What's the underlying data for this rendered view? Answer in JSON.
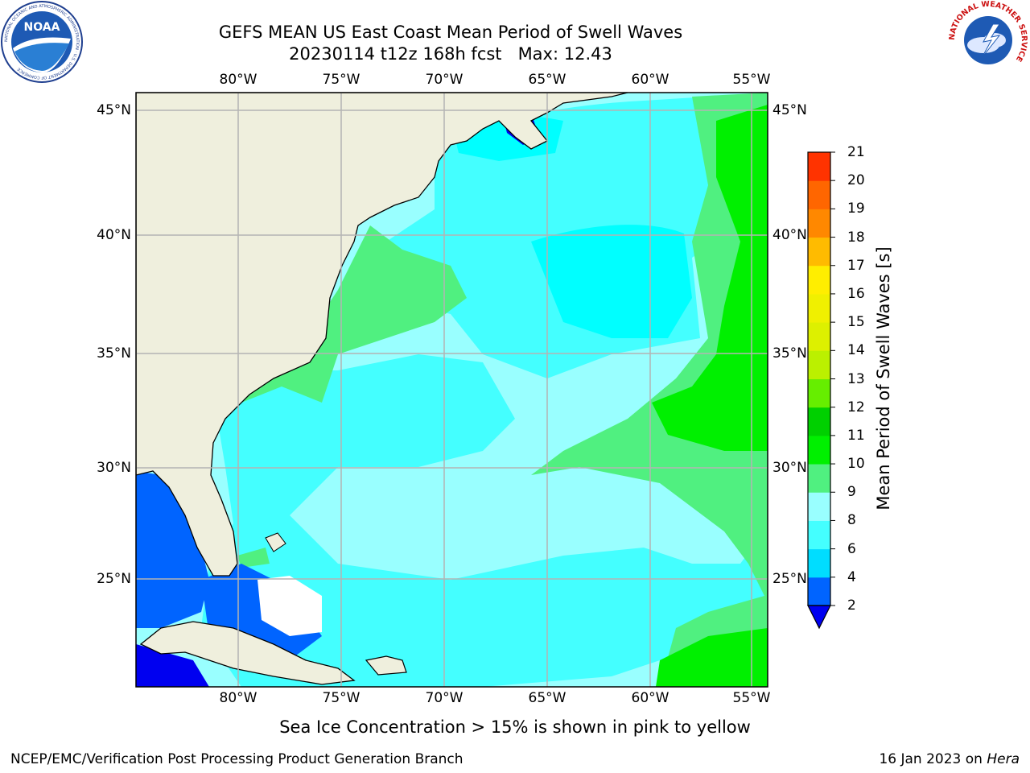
{
  "header": {
    "title_line1": "GEFS MEAN US East Coast Mean Period of Swell Waves",
    "title_line2": "20230114 t12z 168h fcst   Max: 12.43"
  },
  "logos": {
    "left": {
      "icon": "noaa-logo",
      "text": "NOAA",
      "ring": "NATIONAL OCEANIC AND ATMOSPHERIC ADMINISTRATION · U.S. DEPARTMENT OF COMMERCE"
    },
    "right": {
      "icon": "nws-logo",
      "ring": "NATIONAL WEATHER SERVICE"
    }
  },
  "map": {
    "lon_ticks": [
      "80°W",
      "75°W",
      "70°W",
      "65°W",
      "60°W",
      "55°W"
    ],
    "lat_ticks": [
      "45°N",
      "40°N",
      "35°N",
      "30°N",
      "25°N"
    ],
    "lon_range": [
      -85,
      -54.4
    ],
    "lat_range": [
      20.4,
      45.8
    ],
    "colors": {
      "land": "#efefdd",
      "grid": "#b4b4b4",
      "coast": "#000000",
      "no_data": "#ffffff"
    }
  },
  "colorbar": {
    "title": "Mean Period of Swell Waves [s]",
    "levels": [
      "2",
      "4",
      "6",
      "8",
      "9",
      "10",
      "11",
      "12",
      "13",
      "14",
      "15",
      "16",
      "17",
      "18",
      "19",
      "20",
      "21"
    ],
    "colors": [
      "#0064ff",
      "#00ddff",
      "#44ffff",
      "#99ffff",
      "#50f080",
      "#00f000",
      "#00d000",
      "#66ee00",
      "#bbf000",
      "#ddf000",
      "#f0f000",
      "#ffee00",
      "#ffbb00",
      "#ff8800",
      "#ff6600",
      "#ff3300"
    ],
    "under_color": "#0000f0"
  },
  "footer": {
    "note": "Sea Ice Concentration > 15% is shown in pink to yellow",
    "left": "NCEP/EMC/Verification Post Processing Product Generation Branch",
    "date": "16 Jan 2023 on ",
    "machine": "Hera"
  }
}
